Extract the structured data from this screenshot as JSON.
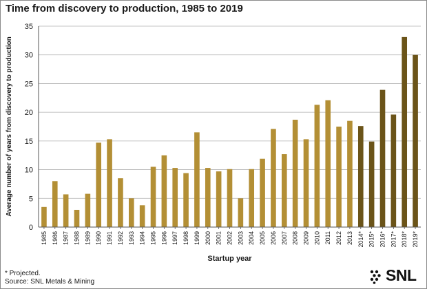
{
  "header": {
    "title": "Time from discovery to production, 1985 to 2019"
  },
  "footnotes": {
    "projected": "* Projected.",
    "source": "Source: SNL Metals & Mining"
  },
  "logo": {
    "text": "SNL",
    "icon": "snl-dots-icon"
  },
  "colors": {
    "actual": "#b38f35",
    "projected": "#6b5419",
    "grid": "#b0b0b0",
    "axis": "#555555",
    "text": "#1a1a1a"
  },
  "chart_data": {
    "type": "bar",
    "title": "Time from discovery to production, 1985 to 2019",
    "xlabel": "Startup year",
    "ylabel": "Average number of years from discovery to production",
    "ylim": [
      0,
      35
    ],
    "yticks": [
      0,
      5,
      10,
      15,
      20,
      25,
      30,
      35
    ],
    "grid": true,
    "categories": [
      "1985",
      "1986",
      "1987",
      "1988",
      "1989",
      "1990",
      "1991",
      "1992",
      "1993",
      "1994",
      "1995",
      "1996",
      "1997",
      "1998",
      "1999",
      "2000",
      "2001",
      "2002",
      "2003",
      "2004",
      "2005",
      "2006",
      "2007",
      "2008",
      "2009",
      "2010",
      "2011",
      "2012",
      "2013",
      "2014*",
      "2015*",
      "2016*",
      "2017*",
      "2018*",
      "2019*"
    ],
    "values": [
      3.5,
      8.0,
      5.7,
      3.0,
      5.8,
      14.7,
      15.3,
      8.5,
      5.0,
      3.8,
      10.5,
      12.5,
      10.3,
      9.4,
      16.5,
      10.3,
      9.7,
      10.1,
      5.0,
      10.1,
      11.9,
      17.1,
      12.7,
      18.7,
      15.3,
      21.3,
      22.1,
      17.5,
      18.5,
      17.6,
      14.9,
      23.9,
      19.6,
      33.1,
      30.0
    ],
    "projected_from_index": 29
  }
}
